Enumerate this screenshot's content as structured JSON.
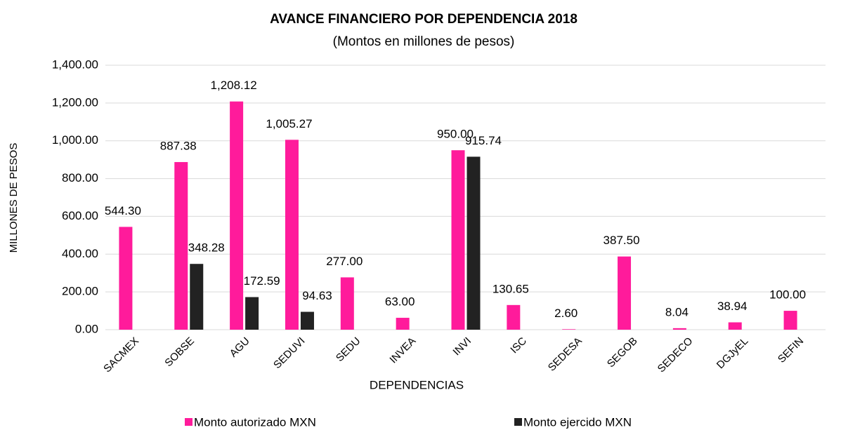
{
  "chart_data": {
    "type": "bar",
    "title": "AVANCE FINANCIERO POR DEPENDENCIA 2018",
    "subtitle": "(Montos en millones de pesos)",
    "x_label": "DEPENDENCIAS",
    "y_label": "MILLONES DE PESOS",
    "categories": [
      "SACMEX",
      "SOBSE",
      "AGU",
      "SEDUVI",
      "SEDU",
      "INVEA",
      "INVI",
      "ISC",
      "SEDESA",
      "SEGOB",
      "SEDECO",
      "DGJyEL",
      "SEFIN"
    ],
    "series": [
      {
        "name": "Monto autorizado MXN",
        "color": "#ff1b9b",
        "values": [
          544.3,
          887.38,
          1208.12,
          1005.27,
          277,
          63,
          950,
          130.65,
          2.6,
          387.5,
          8.04,
          38.94,
          100
        ],
        "value_labels": [
          "544.30",
          "887.38",
          "1,208.12",
          "1,005.27",
          "277.00",
          "63.00",
          "950.00",
          "130.65",
          "2.60",
          "387.50",
          "8.04",
          "38.94",
          "100.00"
        ]
      },
      {
        "name": "Monto ejercido MXN",
        "color": "#222222",
        "values": [
          null,
          348.28,
          172.59,
          94.63,
          null,
          null,
          915.74,
          null,
          null,
          null,
          null,
          null,
          null
        ],
        "value_labels": [
          null,
          "348.28",
          "172.59",
          "94.63",
          null,
          null,
          "915.74",
          null,
          null,
          null,
          null,
          null,
          null
        ]
      }
    ],
    "ylim": [
      0,
      1400
    ],
    "yticks": [
      {
        "value": 0,
        "label": "0.00"
      },
      {
        "value": 200,
        "label": "200.00"
      },
      {
        "value": 400,
        "label": "400.00"
      },
      {
        "value": 600,
        "label": "600.00"
      },
      {
        "value": 800,
        "label": "800.00"
      },
      {
        "value": 1000,
        "label": "1,000.00"
      },
      {
        "value": 1200,
        "label": "1,200.00"
      },
      {
        "value": 1400,
        "label": "1,400.00"
      }
    ],
    "grid": true,
    "legend": "bottom"
  }
}
